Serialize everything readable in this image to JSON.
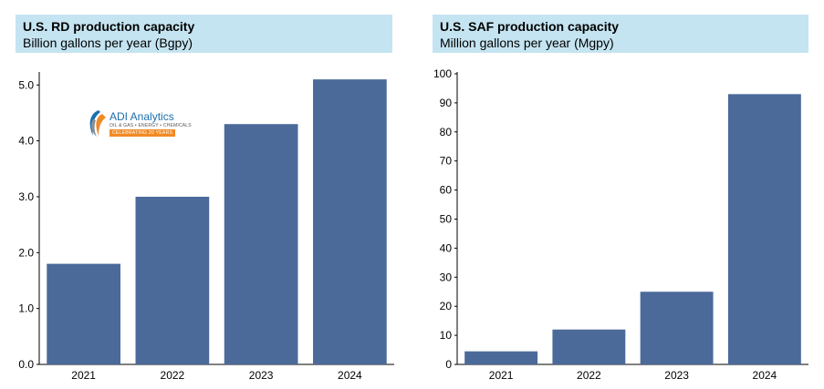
{
  "charts": [
    {
      "title": "U.S. RD production capacity",
      "subtitle": "Billion gallons per year (Bgpy)"
    },
    {
      "title": "U.S. SAF production capacity",
      "subtitle": "Million gallons per year (Mgpy)"
    }
  ],
  "logo": {
    "brand": "ADI Analytics",
    "tagline": "OIL & GAS • ENERGY • CHEMICALS",
    "ribbon": "CELEBRATING 20 YEARS"
  },
  "colors": {
    "bar": "#4b6a9a",
    "header_bg": "#c5e4f1",
    "logo_blue": "#1b6fae",
    "logo_orange": "#f08a24"
  },
  "chart_data": [
    {
      "type": "bar",
      "title": "U.S. RD production capacity",
      "subtitle": "Billion gallons per year (Bgpy)",
      "categories": [
        "2021",
        "2022",
        "2023",
        "2024"
      ],
      "values": [
        1.8,
        3.0,
        4.3,
        5.1
      ],
      "yticks": [
        "0.0",
        "1.0",
        "2.0",
        "3.0",
        "4.0",
        "5.0"
      ],
      "ylim": [
        0,
        5.2
      ],
      "grid": false,
      "legend": "none"
    },
    {
      "type": "bar",
      "title": "U.S. SAF production capacity",
      "subtitle": "Million gallons per year (Mgpy)",
      "categories": [
        "2021",
        "2022",
        "2023",
        "2024"
      ],
      "values": [
        4.5,
        12,
        25,
        93
      ],
      "yticks": [
        "0",
        "10",
        "20",
        "30",
        "40",
        "50",
        "60",
        "70",
        "80",
        "90",
        "100"
      ],
      "ylim": [
        0,
        100
      ],
      "grid": false,
      "legend": "none"
    }
  ]
}
